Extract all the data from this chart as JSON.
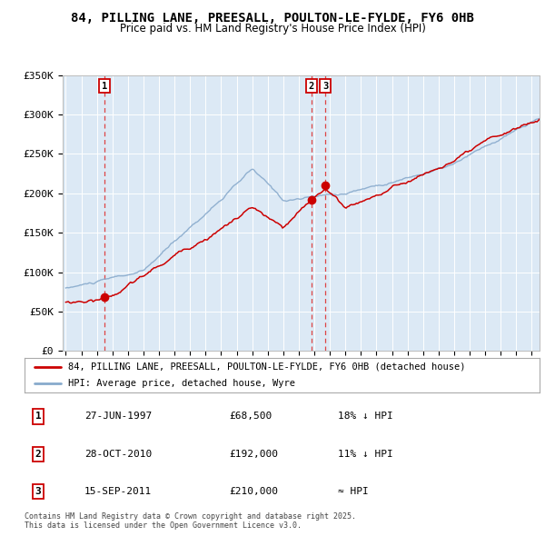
{
  "title": "84, PILLING LANE, PREESALL, POULTON-LE-FYLDE, FY6 0HB",
  "subtitle": "Price paid vs. HM Land Registry's House Price Index (HPI)",
  "background_color": "#dce9f5",
  "ylim": [
    0,
    350000
  ],
  "yticks": [
    0,
    50000,
    100000,
    150000,
    200000,
    250000,
    300000,
    350000
  ],
  "ytick_labels": [
    "£0",
    "£50K",
    "£100K",
    "£150K",
    "£200K",
    "£250K",
    "£300K",
    "£350K"
  ],
  "xlim_start": 1994.8,
  "xlim_end": 2025.5,
  "sale_dates": [
    1997.49,
    2010.82,
    2011.71
  ],
  "sale_prices": [
    68500,
    192000,
    210000
  ],
  "sale_labels": [
    "1",
    "2",
    "3"
  ],
  "red_line_color": "#cc0000",
  "blue_line_color": "#88aacc",
  "sale_marker_color": "#cc0000",
  "dashed_line_color": "#dd4444",
  "legend_entries": [
    "84, PILLING LANE, PREESALL, POULTON-LE-FYLDE, FY6 0HB (detached house)",
    "HPI: Average price, detached house, Wyre"
  ],
  "table_rows": [
    [
      "1",
      "27-JUN-1997",
      "£68,500",
      "18% ↓ HPI"
    ],
    [
      "2",
      "28-OCT-2010",
      "£192,000",
      "11% ↓ HPI"
    ],
    [
      "3",
      "15-SEP-2011",
      "£210,000",
      "≈ HPI"
    ]
  ],
  "footnote": "Contains HM Land Registry data © Crown copyright and database right 2025.\nThis data is licensed under the Open Government Licence v3.0."
}
